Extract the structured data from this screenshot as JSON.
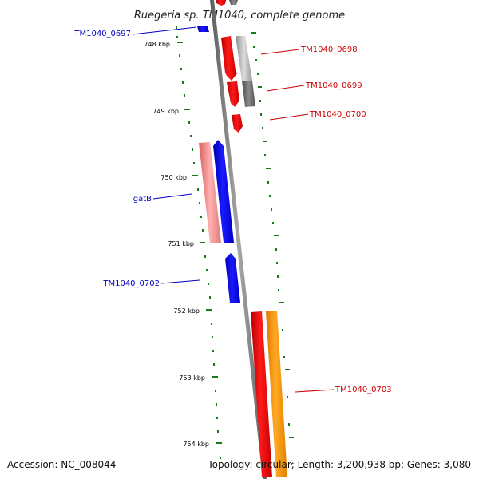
{
  "title": "Ruegeria sp. TM1040, complete genome",
  "footer": {
    "accession": "Accession: NC_008044",
    "topology": "Topology: circular; Length: 3,200,938 bp; Genes: 3,080"
  },
  "ticks": [
    "748 kbp",
    "749 kbp",
    "750 kbp",
    "751 kbp",
    "752 kbp",
    "753 kbp",
    "754 kbp"
  ],
  "labels": {
    "tm1040_0697": "TM1040_0697",
    "tm1040_0698": "TM1040_0698",
    "tm1040_0699": "TM1040_0699",
    "tm1040_0700": "TM1040_0700",
    "gatb": "gatB",
    "tm1040_0702": "TM1040_0702",
    "tm1040_0703": "TM1040_0703"
  },
  "colors": {
    "forward": "#e00000",
    "reverse": "#0000e0",
    "backbone": "#888888",
    "tick": "#1a7a1a",
    "pink": "#f08c8c",
    "orange": "#ff9900",
    "gray_light": "#bbbbbb",
    "gray_dark": "#666666"
  }
}
